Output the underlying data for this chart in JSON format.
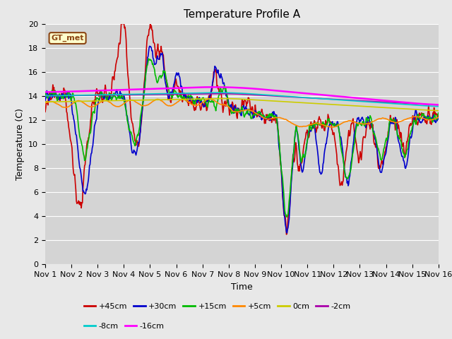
{
  "title": "Temperature Profile A",
  "xlabel": "Time",
  "ylabel": "Temperature (C)",
  "ylim": [
    0,
    20
  ],
  "xlim": [
    0,
    15
  ],
  "xtick_labels": [
    "Nov 1",
    "Nov 2",
    "Nov 3",
    "Nov 4",
    "Nov 5",
    "Nov 6",
    "Nov 7",
    "Nov 8",
    "Nov 9",
    "Nov 10",
    "Nov 11",
    "Nov 12",
    "Nov 13",
    "Nov 14",
    "Nov 15",
    "Nov 16"
  ],
  "ytick_values": [
    0,
    2,
    4,
    6,
    8,
    10,
    12,
    14,
    16,
    18,
    20
  ],
  "legend_label": "GT_met",
  "series_labels": [
    "+45cm",
    "+30cm",
    "+15cm",
    "+5cm",
    "0cm",
    "-2cm",
    "-8cm",
    "-16cm"
  ],
  "series_colors": [
    "#cc0000",
    "#0000cc",
    "#00bb00",
    "#ff8800",
    "#cccc00",
    "#aa00aa",
    "#00cccc",
    "#ff00ff"
  ],
  "line_widths": [
    1.2,
    1.2,
    1.2,
    1.2,
    1.2,
    1.2,
    1.2,
    1.8
  ],
  "background_color": "#e8e8e8",
  "plot_bg_color": "#d4d4d4",
  "title_fontsize": 11,
  "label_fontsize": 9,
  "tick_fontsize": 8
}
